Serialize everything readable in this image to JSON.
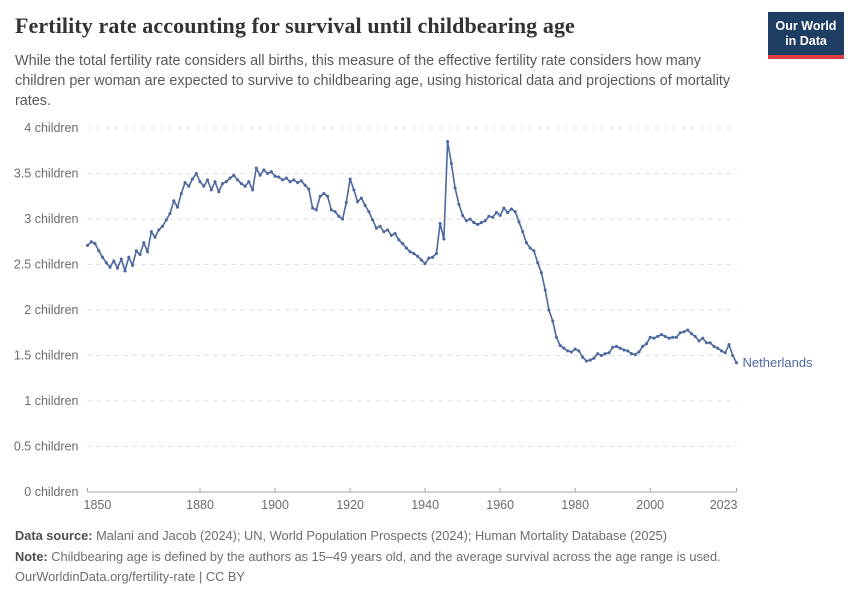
{
  "header": {
    "title": "Fertility rate accounting for survival until childbearing age",
    "subtitle": "While the total fertility rate considers all births, this measure of the effective fertility rate considers how many children per woman are expected to survive to childbearing age, using historical data and projections of mortality rates.",
    "logo": {
      "line1": "Our World",
      "line2": "in Data",
      "bg_color": "#1d3d63",
      "accent_color": "#dc3e42"
    }
  },
  "chart_data": {
    "type": "line",
    "title": "Fertility rate accounting for survival until childbearing age",
    "xlabel": "",
    "ylabel": "",
    "xlim": [
      1850,
      2023
    ],
    "ylim": [
      0,
      4
    ],
    "grid": "dashed-horizontal",
    "legend_position": "end-of-line",
    "x_ticks": [
      {
        "value": 1850,
        "label": "1850"
      },
      {
        "value": 1880,
        "label": "1880"
      },
      {
        "value": 1900,
        "label": "1900"
      },
      {
        "value": 1920,
        "label": "1920"
      },
      {
        "value": 1940,
        "label": "1940"
      },
      {
        "value": 1960,
        "label": "1960"
      },
      {
        "value": 1980,
        "label": "1980"
      },
      {
        "value": 2000,
        "label": "2000"
      },
      {
        "value": 2023,
        "label": "2023"
      }
    ],
    "y_ticks": [
      {
        "value": 0,
        "label": "0 children"
      },
      {
        "value": 0.5,
        "label": "0.5 children"
      },
      {
        "value": 1,
        "label": "1 children"
      },
      {
        "value": 1.5,
        "label": "1.5 children"
      },
      {
        "value": 2,
        "label": "2 children"
      },
      {
        "value": 2.5,
        "label": "2.5 children"
      },
      {
        "value": 3,
        "label": "3 children"
      },
      {
        "value": 3.5,
        "label": "3.5 children"
      },
      {
        "value": 4,
        "label": "4 children"
      }
    ],
    "series": [
      {
        "name": "Netherlands",
        "color": "#4d689e",
        "x_start": 1850,
        "x_step": 1,
        "values": [
          2.71,
          2.75,
          2.73,
          2.65,
          2.58,
          2.52,
          2.47,
          2.54,
          2.46,
          2.56,
          2.43,
          2.58,
          2.49,
          2.65,
          2.61,
          2.74,
          2.64,
          2.86,
          2.8,
          2.88,
          2.92,
          2.99,
          3.06,
          3.2,
          3.13,
          3.28,
          3.4,
          3.36,
          3.44,
          3.5,
          3.41,
          3.36,
          3.43,
          3.32,
          3.41,
          3.3,
          3.39,
          3.41,
          3.45,
          3.48,
          3.43,
          3.39,
          3.36,
          3.41,
          3.32,
          3.56,
          3.48,
          3.54,
          3.5,
          3.52,
          3.47,
          3.46,
          3.43,
          3.45,
          3.41,
          3.43,
          3.4,
          3.42,
          3.37,
          3.33,
          3.12,
          3.1,
          3.25,
          3.28,
          3.25,
          3.1,
          3.08,
          3.03,
          3.0,
          3.18,
          3.44,
          3.32,
          3.19,
          3.23,
          3.15,
          3.08,
          2.99,
          2.9,
          2.92,
          2.86,
          2.88,
          2.82,
          2.84,
          2.77,
          2.73,
          2.68,
          2.64,
          2.62,
          2.59,
          2.55,
          2.51,
          2.57,
          2.58,
          2.62,
          2.95,
          2.78,
          3.85,
          3.61,
          3.34,
          3.16,
          3.04,
          2.98,
          3.0,
          2.96,
          2.94,
          2.96,
          2.98,
          3.03,
          3.02,
          3.07,
          3.04,
          3.12,
          3.07,
          3.11,
          3.08,
          2.97,
          2.86,
          2.74,
          2.68,
          2.65,
          2.52,
          2.41,
          2.22,
          2.0,
          1.88,
          1.7,
          1.61,
          1.58,
          1.55,
          1.54,
          1.57,
          1.55,
          1.48,
          1.44,
          1.45,
          1.47,
          1.52,
          1.5,
          1.52,
          1.53,
          1.59,
          1.6,
          1.58,
          1.56,
          1.55,
          1.52,
          1.51,
          1.54,
          1.6,
          1.63,
          1.7,
          1.69,
          1.71,
          1.73,
          1.71,
          1.69,
          1.7,
          1.7,
          1.75,
          1.76,
          1.78,
          1.74,
          1.71,
          1.66,
          1.69,
          1.64,
          1.64,
          1.6,
          1.58,
          1.55,
          1.53,
          1.62,
          1.5,
          1.42
        ]
      }
    ]
  },
  "footer": {
    "data_source_label": "Data source:",
    "data_source": "Malani and Jacob (2024); UN, World Population Prospects (2024); Human Mortality Database (2025)",
    "note_label": "Note:",
    "note": "Childbearing age is defined by the authors as 15–49 years old, and the average survival across the age range is used.",
    "url": "OurWorldinData.org/fertility-rate",
    "separator": "|",
    "license": "CC BY"
  }
}
